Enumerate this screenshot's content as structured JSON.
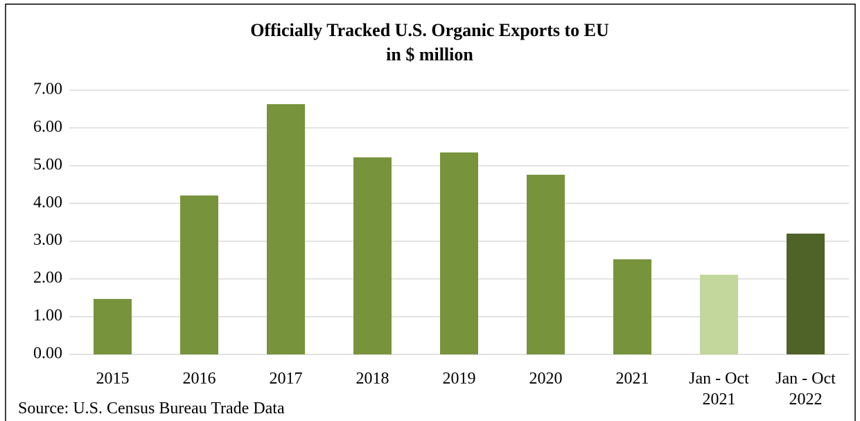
{
  "chart_data": {
    "type": "bar",
    "title": "Officially Tracked U.S. Organic Exports to EU",
    "subtitle": "in $ million",
    "categories": [
      "2015",
      "2016",
      "2017",
      "2018",
      "2019",
      "2020",
      "2021",
      "Jan - Oct\n2021",
      "Jan - Oct\n2022"
    ],
    "values": [
      1.47,
      4.21,
      6.63,
      5.22,
      5.35,
      4.76,
      2.52,
      2.11,
      3.2
    ],
    "colors": [
      "#77933c",
      "#77933c",
      "#77933c",
      "#77933c",
      "#77933c",
      "#77933c",
      "#77933c",
      "#c3d69b",
      "#4f6228"
    ],
    "ylim": [
      0,
      7
    ],
    "yticks": [
      {
        "value": 0,
        "label": "0.00"
      },
      {
        "value": 1,
        "label": "1.00"
      },
      {
        "value": 2,
        "label": "2.00"
      },
      {
        "value": 3,
        "label": "3.00"
      },
      {
        "value": 4,
        "label": "4.00"
      },
      {
        "value": 5,
        "label": "5.00"
      },
      {
        "value": 6,
        "label": "6.00"
      },
      {
        "value": 7,
        "label": "7.00"
      }
    ],
    "grid": true,
    "source": "Source: U.S. Census Bureau Trade Data"
  }
}
